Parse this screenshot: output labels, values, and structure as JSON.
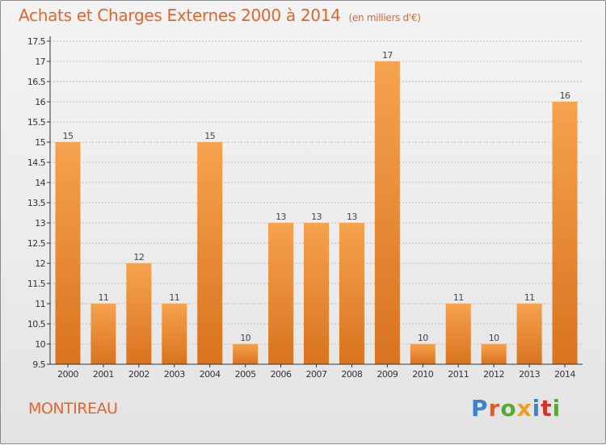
{
  "header": {
    "title": "Achats et Charges Externes 2000 à 2014",
    "unit": "(en milliers d'€)"
  },
  "footer": {
    "town": "MONTIREAU",
    "brand_letters": [
      {
        "char": "P",
        "color": "#3a84c9"
      },
      {
        "char": "r",
        "color": "#e85a2a"
      },
      {
        "char": "o",
        "color": "#5aa83c"
      },
      {
        "char": "x",
        "color": "#e8a21f"
      },
      {
        "char": "i",
        "color": "#3a84c9"
      },
      {
        "char": "t",
        "color": "#d4342a"
      },
      {
        "char": "i",
        "color": "#5aa83c"
      }
    ]
  },
  "colors": {
    "accent": "#e0662e",
    "bar_top": "#f6a24e",
    "bar_bottom": "#d9731f",
    "axis": "#333333",
    "grid": "#bdbdbd"
  },
  "chart_data": {
    "type": "bar",
    "title": "Achats et Charges Externes 2000 à 2014",
    "subtitle": "(en milliers d'€)",
    "xlabel": "",
    "ylabel": "",
    "categories": [
      "2000",
      "2001",
      "2002",
      "2003",
      "2004",
      "2005",
      "2006",
      "2007",
      "2008",
      "2009",
      "2010",
      "2011",
      "2012",
      "2013",
      "2014"
    ],
    "values": [
      15,
      11,
      12,
      11,
      15,
      10,
      13,
      13,
      13,
      17,
      10,
      11,
      10,
      11,
      16
    ],
    "data_labels": [
      "15",
      "11",
      "12",
      "11",
      "15",
      "10",
      "13",
      "13",
      "13",
      "17",
      "10",
      "11",
      "10",
      "11",
      "16"
    ],
    "ylim": [
      9.5,
      17.5
    ],
    "yticks": [
      9.5,
      10,
      10.5,
      11,
      11.5,
      12,
      12.5,
      13,
      13.5,
      14,
      14.5,
      15,
      15.5,
      16,
      16.5,
      17,
      17.5
    ],
    "ytick_labels": [
      "9.5",
      "10",
      "10.5",
      "11",
      "11.5",
      "12",
      "12.5",
      "13",
      "13.5",
      "14",
      "14.5",
      "15",
      "15.5",
      "16",
      "16.5",
      "17",
      "17.5"
    ],
    "grid": true,
    "legend": "none"
  }
}
